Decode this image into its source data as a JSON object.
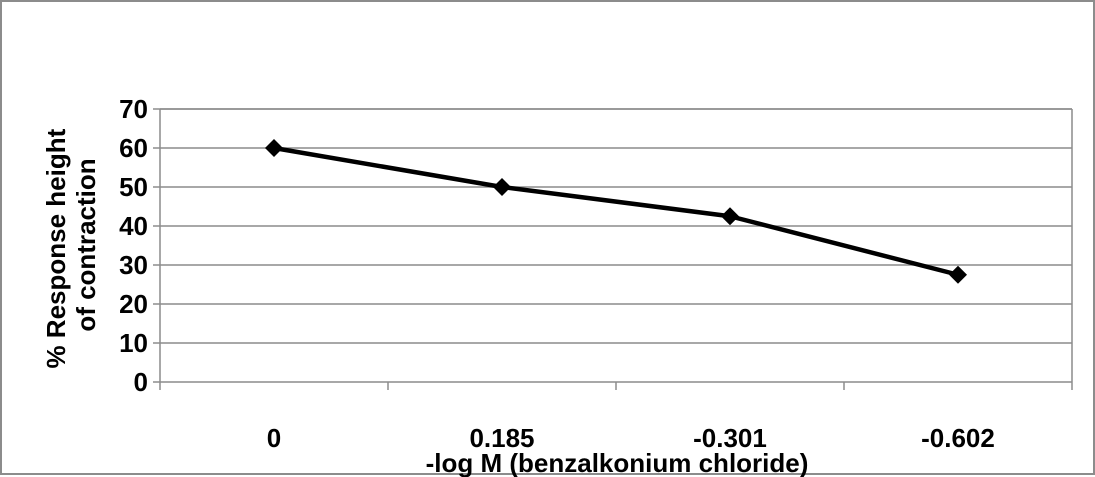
{
  "chart_data": {
    "type": "line",
    "categories": [
      "0",
      "0.185",
      "-0.301",
      "-0.602"
    ],
    "series": [
      {
        "values": [
          60,
          50,
          42.5,
          27.5
        ]
      }
    ],
    "xlabel": "-log M (benzalkonium chloride)",
    "ylabel_lines": [
      "% Response height",
      "of contraction"
    ],
    "ylim": [
      0,
      70
    ],
    "ytick_step": 10,
    "grid": true,
    "legend": "none",
    "marker": "diamond",
    "colors": {
      "line": "#000000",
      "grid": "#8c8c8c",
      "frame": "#8c8c8c"
    }
  }
}
